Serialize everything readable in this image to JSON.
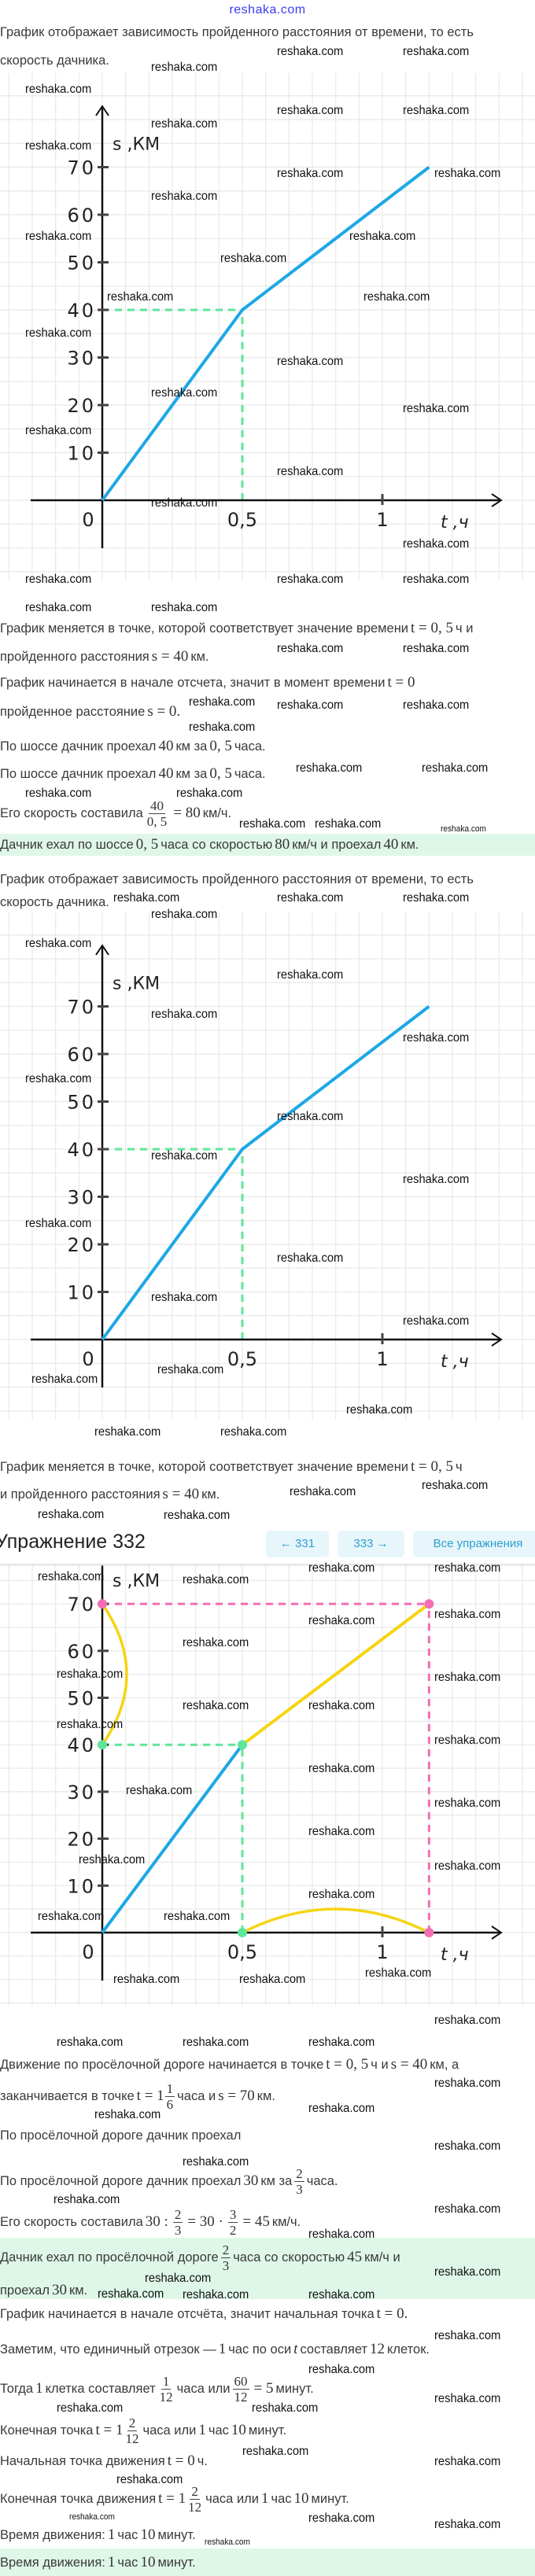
{
  "header": {
    "logo": "reshaka.com"
  },
  "watermark": "reshaka.com",
  "colors": {
    "highway": "#1ea7e6",
    "dirt_road": "#f5d414",
    "guide_green": "#5ee69a",
    "guide_pink": "#f36db5",
    "answer_bg": "#dff7e8",
    "nav_bg": "#e6f6fb",
    "nav_text": "#2f9fce"
  },
  "s1": {
    "intro1": "График отображает зависимость пройденного расстояния от времени, то есть",
    "intro2": "скорость дачника.",
    "l1": [
      "График меняется в точке, которой соответствует значение времени",
      "t = 0, 5",
      "ч и"
    ],
    "l2": [
      "пройденного расстояния",
      "s = 40",
      "км."
    ],
    "l3": [
      "График начинается в начале отсчета, значит в момент времени",
      "t = 0"
    ],
    "l4": [
      "пройденное расстояние",
      "s = 0."
    ],
    "l5": [
      "По шоссе дачник проехал",
      "40",
      "км за",
      "0, 5",
      "часа."
    ],
    "l6": [
      "По шоссе дачник проехал",
      "40",
      "км за",
      "0, 5",
      "часа."
    ],
    "l7": [
      "Его скорость составила",
      "40",
      "0, 5",
      "= 80",
      "км/ч."
    ],
    "answer": [
      "Дачник ехал по шоссе",
      "0, 5",
      "часа со скоростью",
      "80",
      "км/ч и проехал",
      "40",
      "км."
    ]
  },
  "s2": {
    "intro1": "График отображает зависимость пройденного расстояния от времени, то есть",
    "intro2": "скорость дачника.",
    "l1": [
      "График меняется в точке, которой соответствует значение времени",
      "t = 0, 5",
      "ч"
    ],
    "l2": [
      "и пройденного расстояния",
      "s = 40",
      "км."
    ]
  },
  "nav": {
    "title": "Упражнение 332",
    "prev": "← 331",
    "next": "333 →",
    "all": "Все упражнения"
  },
  "s3": {
    "l1": [
      "Движение по просёлочной дороге начинается в точке",
      "t = 0, 5",
      "ч и",
      "s = 40",
      "км, а"
    ],
    "l2": [
      "заканчивается в точке",
      "t = 1",
      "1",
      "6",
      "часа и",
      "s = 70",
      "км."
    ],
    "l3": "По просёлочной дороге дачник проехал",
    "l4": [
      "По просёлочной дороге дачник проехал",
      "30",
      "км за",
      "2",
      "3",
      "часа."
    ],
    "l5": [
      "Его скорость составила",
      "30 :",
      "2",
      "3",
      "= 30 ·",
      "3",
      "2",
      "= 45",
      "км/ч."
    ],
    "answer1": [
      "Дачник ехал по просёлочной дороге",
      "2",
      "3",
      "часа со скоростью",
      "45",
      "км/ч и"
    ],
    "answer2": [
      "проехал",
      "30",
      "км."
    ]
  },
  "s4": {
    "l1": [
      "График начинается в начале отсчёта, значит начальная точка",
      "t = 0."
    ],
    "l2": [
      "Заметим, что единичный отрезок —",
      "1",
      "час по оси",
      "t",
      "составляет",
      "12",
      "клеток."
    ],
    "l3": [
      "Тогда",
      "1",
      "клетка составляет",
      "1",
      "12",
      "часа или",
      "60",
      "12",
      "= 5",
      "минут."
    ],
    "l4": [
      "Конечная точка",
      "t = 1",
      "2",
      "12",
      "часа или",
      "1",
      "час",
      "10",
      "минут."
    ],
    "l5": [
      "Начальная точка движения",
      "t = 0",
      "ч."
    ],
    "l6": [
      "Конечная точка движения",
      "t = 1",
      "2",
      "12",
      "часа или",
      "1",
      "час",
      "10",
      "минут."
    ],
    "l7": [
      "Время движения:",
      "1",
      "час",
      "10",
      "минут."
    ],
    "answer": [
      "Время движения:",
      "1",
      "час",
      "10",
      "минут."
    ]
  },
  "chart_data": [
    {
      "type": "line",
      "ylabel": "s ,КМ",
      "xlabel": "t ,ч",
      "grid": true,
      "y_ticks": [
        "10",
        "20",
        "30",
        "40",
        "50",
        "60",
        "70"
      ],
      "x_ticks": [
        {
          "value": 0,
          "label": "0"
        },
        {
          "value": 0.5,
          "label": "0,5"
        },
        {
          "value": 1,
          "label": "1"
        }
      ],
      "series": [
        {
          "x": [
            0,
            0.5,
            1.1667
          ],
          "y": [
            0,
            40,
            70
          ],
          "color": "#1ea7e6"
        }
      ],
      "guides": [
        {
          "axis": "s",
          "value": 40,
          "until": 0.5,
          "color": "#5ee69a"
        },
        {
          "axis": "t",
          "value": 0.5,
          "until": 40,
          "color": "#5ee69a"
        }
      ]
    },
    {
      "type": "line",
      "ylabel": "s ,КМ",
      "xlabel": "t ,ч",
      "grid": true,
      "y_ticks": [
        "10",
        "20",
        "30",
        "40",
        "50",
        "60",
        "70"
      ],
      "x_ticks": [
        {
          "value": 0,
          "label": "0"
        },
        {
          "value": 0.5,
          "label": "0,5"
        },
        {
          "value": 1,
          "label": "1"
        }
      ],
      "series": [
        {
          "x": [
            0,
            0.5,
            1.1667
          ],
          "y": [
            0,
            40,
            70
          ],
          "color": "#1ea7e6"
        }
      ],
      "guides": [
        {
          "axis": "s",
          "value": 40,
          "until": 0.5,
          "color": "#5ee69a"
        },
        {
          "axis": "t",
          "value": 0.5,
          "until": 40,
          "color": "#5ee69a"
        }
      ]
    },
    {
      "type": "line",
      "ylabel": "s ,КМ",
      "xlabel": "t ,ч",
      "grid": true,
      "y_ticks": [
        "10",
        "20",
        "30",
        "40",
        "50",
        "60",
        "70"
      ],
      "x_ticks": [
        {
          "value": 0,
          "label": "0"
        },
        {
          "value": 0.5,
          "label": "0,5"
        },
        {
          "value": 1,
          "label": "1"
        }
      ],
      "series": [
        {
          "x": [
            0,
            0.5
          ],
          "y": [
            0,
            40
          ],
          "color": "#1ea7e6"
        },
        {
          "x": [
            0.5,
            1.1667
          ],
          "y": [
            40,
            70
          ],
          "color": "#f5d414"
        }
      ],
      "guides": [
        {
          "axis": "s",
          "value": 40,
          "until": 0.5,
          "color": "#5ee69a"
        },
        {
          "axis": "t",
          "value": 0.5,
          "until": 40,
          "color": "#5ee69a"
        },
        {
          "axis": "s",
          "value": 70,
          "until": 1.1667,
          "color": "#f36db5"
        },
        {
          "axis": "t",
          "value": 1.1667,
          "until": 70,
          "color": "#f36db5"
        }
      ],
      "markers": [
        {
          "x": 0,
          "y": 70,
          "color": "#f36db5"
        },
        {
          "x": 1.1667,
          "y": 70,
          "color": "#f36db5"
        },
        {
          "x": 1.1667,
          "y": 0,
          "color": "#f36db5"
        },
        {
          "x": 0,
          "y": 40,
          "color": "#5ee69a"
        },
        {
          "x": 0.5,
          "y": 40,
          "color": "#5ee69a"
        },
        {
          "x": 0.5,
          "y": 0,
          "color": "#5ee69a"
        }
      ],
      "brackets": [
        {
          "axis": "s",
          "from": 40,
          "to": 70,
          "color": "#f5d414"
        },
        {
          "axis": "t",
          "from": 0.5,
          "to": 1.1667,
          "color": "#f5d414"
        }
      ]
    }
  ]
}
